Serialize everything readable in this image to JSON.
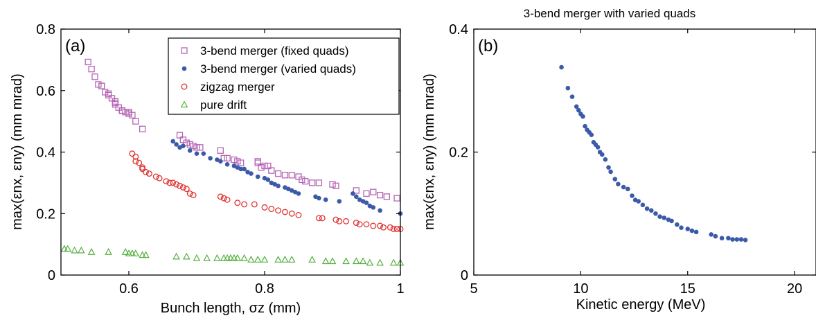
{
  "chart_data": [
    {
      "type": "scatter",
      "panel_label": "(a)",
      "title": "",
      "xlabel": "Bunch length, σz (mm)",
      "ylabel": "max(εnx, εny) (mm mrad)",
      "xlim": [
        0.5,
        1.0
      ],
      "ylim": [
        0,
        0.8
      ],
      "xticks": [
        0.6,
        0.8,
        1
      ],
      "yticks": [
        0,
        0.2,
        0.4,
        0.6,
        0.8
      ],
      "xtick_labels": [
        "0.6",
        "0.8",
        "1"
      ],
      "ytick_labels": [
        "0",
        "0.2",
        "0.4",
        "0.6",
        "0.8"
      ],
      "grid": false,
      "legend_position": "top-right",
      "series": [
        {
          "name": "3-bend merger (fixed quads)",
          "marker": "open-square",
          "color": "#b565b5",
          "x": [
            0.54,
            0.545,
            0.55,
            0.555,
            0.56,
            0.56,
            0.565,
            0.57,
            0.57,
            0.575,
            0.58,
            0.58,
            0.58,
            0.585,
            0.59,
            0.59,
            0.59,
            0.595,
            0.6,
            0.6,
            0.605,
            0.61,
            0.62,
            0.675,
            0.68,
            0.685,
            0.69,
            0.695,
            0.7,
            0.705,
            0.735,
            0.74,
            0.745,
            0.755,
            0.76,
            0.765,
            0.79,
            0.79,
            0.795,
            0.8,
            0.805,
            0.81,
            0.82,
            0.83,
            0.84,
            0.85,
            0.855,
            0.86,
            0.87,
            0.88,
            0.9,
            0.905,
            0.935,
            0.95,
            0.96,
            0.97,
            0.98,
            0.995
          ],
          "y": [
            0.693,
            0.67,
            0.645,
            0.62,
            0.615,
            0.615,
            0.595,
            0.59,
            0.585,
            0.575,
            0.565,
            0.56,
            0.555,
            0.545,
            0.535,
            0.535,
            0.535,
            0.53,
            0.525,
            0.53,
            0.52,
            0.5,
            0.475,
            0.455,
            0.44,
            0.43,
            0.425,
            0.42,
            0.415,
            0.415,
            0.405,
            0.38,
            0.38,
            0.375,
            0.37,
            0.365,
            0.37,
            0.365,
            0.35,
            0.355,
            0.355,
            0.34,
            0.33,
            0.325,
            0.325,
            0.32,
            0.31,
            0.305,
            0.3,
            0.3,
            0.295,
            0.29,
            0.275,
            0.265,
            0.27,
            0.26,
            0.255,
            0.25
          ]
        },
        {
          "name": "3-bend merger (varied quads)",
          "marker": "filled-circle",
          "color": "#3b5ba9",
          "x": [
            0.665,
            0.67,
            0.675,
            0.68,
            0.69,
            0.7,
            0.71,
            0.72,
            0.73,
            0.735,
            0.745,
            0.755,
            0.76,
            0.765,
            0.77,
            0.775,
            0.78,
            0.79,
            0.8,
            0.805,
            0.81,
            0.815,
            0.82,
            0.83,
            0.835,
            0.84,
            0.845,
            0.85,
            0.875,
            0.88,
            0.89,
            0.91,
            0.93,
            0.935,
            0.94,
            0.945,
            0.95,
            0.955,
            0.96,
            0.97,
            1.0
          ],
          "y": [
            0.435,
            0.425,
            0.415,
            0.42,
            0.405,
            0.395,
            0.395,
            0.38,
            0.375,
            0.37,
            0.36,
            0.355,
            0.35,
            0.345,
            0.345,
            0.335,
            0.33,
            0.32,
            0.315,
            0.31,
            0.3,
            0.295,
            0.29,
            0.285,
            0.28,
            0.275,
            0.27,
            0.265,
            0.255,
            0.25,
            0.245,
            0.24,
            0.265,
            0.255,
            0.245,
            0.24,
            0.235,
            0.225,
            0.22,
            0.21,
            0.2
          ]
        },
        {
          "name": "zigzag merger",
          "marker": "open-circle",
          "color": "#e03030",
          "x": [
            0.605,
            0.61,
            0.61,
            0.615,
            0.62,
            0.62,
            0.625,
            0.63,
            0.64,
            0.645,
            0.655,
            0.66,
            0.665,
            0.67,
            0.675,
            0.68,
            0.685,
            0.69,
            0.695,
            0.735,
            0.74,
            0.745,
            0.76,
            0.77,
            0.785,
            0.8,
            0.81,
            0.82,
            0.83,
            0.84,
            0.85,
            0.88,
            0.885,
            0.905,
            0.91,
            0.92,
            0.935,
            0.94,
            0.95,
            0.96,
            0.97,
            0.975,
            0.985,
            0.99,
            0.995,
            1.0
          ],
          "y": [
            0.395,
            0.385,
            0.37,
            0.365,
            0.35,
            0.345,
            0.335,
            0.33,
            0.32,
            0.315,
            0.305,
            0.3,
            0.3,
            0.295,
            0.29,
            0.285,
            0.28,
            0.265,
            0.26,
            0.255,
            0.25,
            0.245,
            0.235,
            0.23,
            0.23,
            0.22,
            0.215,
            0.21,
            0.205,
            0.2,
            0.195,
            0.185,
            0.185,
            0.18,
            0.175,
            0.175,
            0.17,
            0.165,
            0.165,
            0.16,
            0.16,
            0.155,
            0.155,
            0.15,
            0.15,
            0.15
          ]
        },
        {
          "name": "pure drift",
          "marker": "open-triangle",
          "color": "#55b040",
          "x": [
            0.505,
            0.51,
            0.52,
            0.53,
            0.545,
            0.57,
            0.595,
            0.6,
            0.605,
            0.61,
            0.62,
            0.625,
            0.67,
            0.685,
            0.7,
            0.715,
            0.73,
            0.74,
            0.745,
            0.75,
            0.755,
            0.76,
            0.77,
            0.78,
            0.79,
            0.8,
            0.82,
            0.83,
            0.84,
            0.87,
            0.89,
            0.9,
            0.92,
            0.935,
            0.945,
            0.955,
            0.97,
            0.99,
            1.0
          ],
          "y": [
            0.085,
            0.085,
            0.08,
            0.08,
            0.075,
            0.075,
            0.075,
            0.07,
            0.07,
            0.07,
            0.065,
            0.065,
            0.06,
            0.06,
            0.055,
            0.055,
            0.055,
            0.055,
            0.055,
            0.055,
            0.055,
            0.055,
            0.055,
            0.05,
            0.05,
            0.05,
            0.05,
            0.05,
            0.05,
            0.05,
            0.045,
            0.045,
            0.045,
            0.045,
            0.045,
            0.04,
            0.04,
            0.04,
            0.04
          ]
        }
      ]
    },
    {
      "type": "scatter",
      "panel_label": "(b)",
      "title": "3-bend merger with varied quads",
      "xlabel": "Kinetic energy (MeV)",
      "ylabel": "max(εnx, εny) (mm mrad)",
      "xlim": [
        5,
        21
      ],
      "ylim": [
        0,
        0.4
      ],
      "xticks": [
        5,
        10,
        15,
        20
      ],
      "yticks": [
        0,
        0.2,
        0.4
      ],
      "xtick_labels": [
        "5",
        "10",
        "15",
        "20"
      ],
      "ytick_labels": [
        "0",
        "0.2",
        "0.4"
      ],
      "grid": false,
      "series": [
        {
          "name": "",
          "marker": "filled-circle",
          "color": "#3b5ba9",
          "x": [
            9.1,
            9.4,
            9.6,
            9.8,
            9.9,
            10.0,
            10.1,
            10.2,
            10.3,
            10.4,
            10.5,
            10.6,
            10.7,
            10.8,
            10.9,
            11.0,
            11.15,
            11.3,
            11.4,
            11.6,
            11.75,
            12.0,
            12.2,
            12.4,
            12.55,
            12.7,
            12.9,
            13.1,
            13.3,
            13.5,
            13.7,
            13.9,
            14.1,
            14.25,
            14.5,
            14.7,
            15.0,
            15.2,
            15.4,
            16.1,
            16.3,
            16.6,
            16.9,
            17.1,
            17.3,
            17.5,
            17.7
          ],
          "y": [
            0.338,
            0.304,
            0.29,
            0.274,
            0.268,
            0.262,
            0.258,
            0.242,
            0.236,
            0.232,
            0.228,
            0.216,
            0.212,
            0.208,
            0.2,
            0.196,
            0.188,
            0.175,
            0.168,
            0.156,
            0.148,
            0.143,
            0.14,
            0.129,
            0.122,
            0.12,
            0.114,
            0.108,
            0.105,
            0.1,
            0.095,
            0.093,
            0.09,
            0.088,
            0.082,
            0.077,
            0.075,
            0.072,
            0.07,
            0.066,
            0.063,
            0.06,
            0.06,
            0.058,
            0.058,
            0.058,
            0.057
          ]
        }
      ]
    }
  ]
}
